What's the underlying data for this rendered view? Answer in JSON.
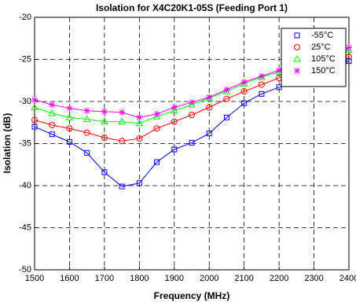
{
  "chart_data": {
    "type": "line",
    "title": "Isolation for X4C20K1-05S (Feeding Port 1)",
    "x_label": "Frequency (MHz)",
    "y_label": "Isolation (dB)",
    "x": [
      1500,
      1550,
      1600,
      1650,
      1700,
      1750,
      1800,
      1850,
      1900,
      1950,
      2000,
      2050,
      2100,
      2150,
      2200,
      2250,
      2300,
      2350,
      2400
    ],
    "series": [
      {
        "name": "-55°C",
        "color": "#0000ff",
        "marker": "square",
        "values": [
          -33.0,
          -33.9,
          -34.8,
          -36.1,
          -38.4,
          -40.1,
          -39.7,
          -37.2,
          -35.7,
          -34.9,
          -33.8,
          -31.9,
          -30.2,
          -29.1,
          -28.3,
          -27.7,
          -27.1,
          -25.9,
          -25.2
        ]
      },
      {
        "name": "25°C",
        "color": "#ff0000",
        "marker": "circle",
        "values": [
          -32.2,
          -32.8,
          -33.2,
          -33.7,
          -34.3,
          -34.7,
          -34.4,
          -33.2,
          -32.4,
          -31.6,
          -30.7,
          -29.7,
          -28.8,
          -28.0,
          -27.2,
          -26.6,
          -26.0,
          -25.4,
          -24.7
        ]
      },
      {
        "name": "105°C",
        "color": "#00ff00",
        "marker": "triangle",
        "values": [
          -30.7,
          -31.4,
          -31.9,
          -32.1,
          -32.4,
          -32.4,
          -32.6,
          -31.8,
          -31.1,
          -30.4,
          -29.6,
          -28.8,
          -27.9,
          -27.1,
          -26.5,
          -25.7,
          -25.2,
          -24.7,
          -23.9
        ]
      },
      {
        "name": "150°C",
        "color": "#ff00ff",
        "marker": "star",
        "values": [
          -29.8,
          -30.4,
          -30.8,
          -31.1,
          -31.2,
          -31.3,
          -31.9,
          -31.5,
          -30.7,
          -30.1,
          -29.5,
          -28.6,
          -27.7,
          -27.0,
          -26.3,
          -25.7,
          -25.1,
          -24.4,
          -23.6
        ]
      }
    ],
    "xlim": [
      1500,
      2400
    ],
    "xticks": [
      1500,
      1600,
      1700,
      1800,
      1900,
      2000,
      2100,
      2200,
      2300,
      2400
    ],
    "ylim": [
      -50,
      -20
    ],
    "yticks": [
      -50,
      -45,
      -40,
      -35,
      -30,
      -25,
      -20
    ],
    "grid": true,
    "legend": "upper right"
  }
}
